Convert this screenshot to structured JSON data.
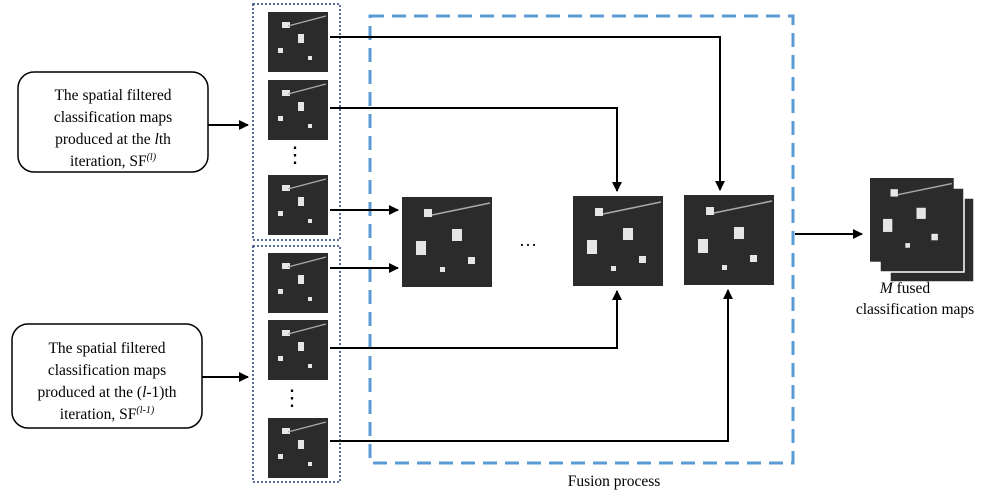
{
  "box_top": {
    "lines": [
      "The spatial filtered",
      "classification maps",
      "produced at the ",
      "l",
      "th",
      "iteration, SF",
      "(l)"
    ]
  },
  "box_bottom": {
    "lines": [
      "The spatial filtered",
      "classification maps",
      "produced at the (",
      "l",
      "-1)th",
      "iteration, SF",
      "(l-1)"
    ]
  },
  "vertical_dots": "⋮",
  "ellipsis": "…",
  "output_label": {
    "variable": "M",
    "line1": " fused",
    "line2": "classification maps"
  },
  "fusion_label": "Fusion process"
}
